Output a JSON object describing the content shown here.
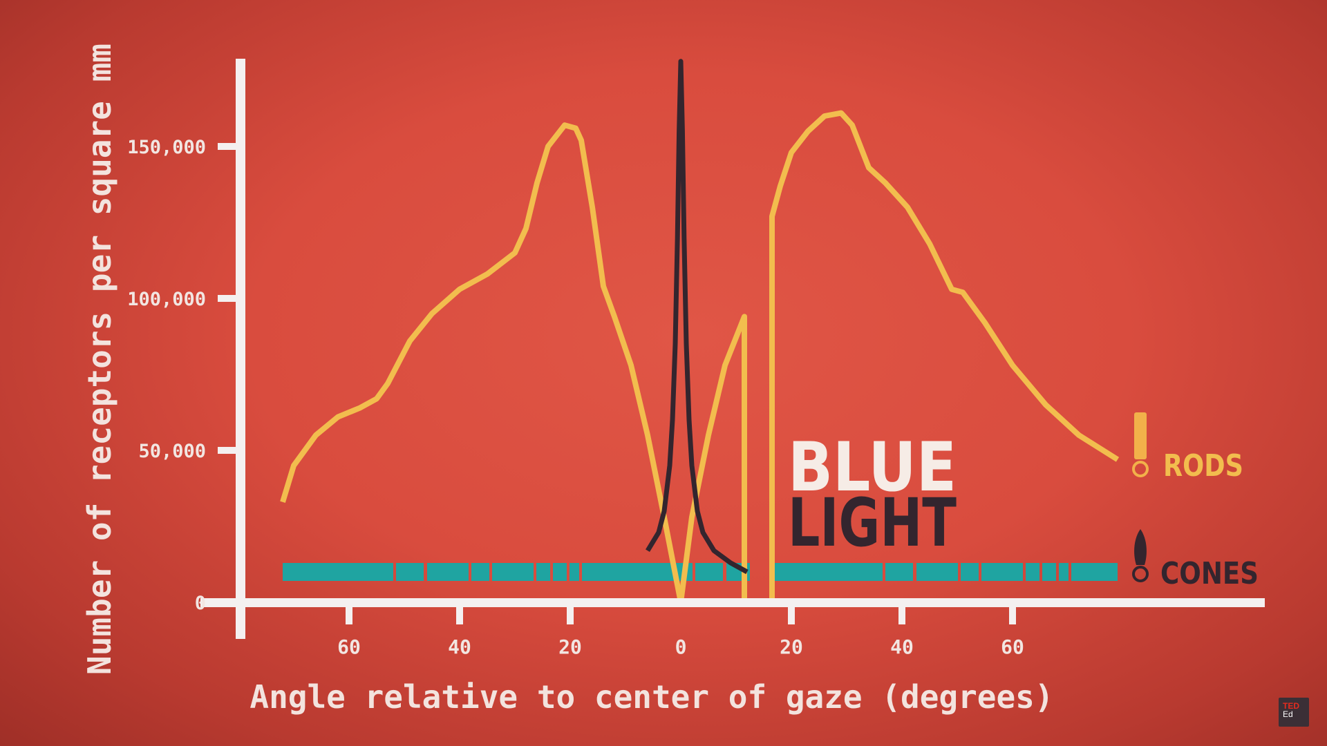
{
  "chart_data": {
    "type": "line",
    "xlabel": "Angle relative to center of gaze (degrees)",
    "ylabel": "Number of receptors per square mm",
    "xlim": [
      -80,
      80
    ],
    "ylim": [
      0,
      180000
    ],
    "x_ticks": [
      -60,
      -40,
      -20,
      0,
      20,
      40,
      60
    ],
    "x_tick_labels": [
      "60",
      "40",
      "20",
      "0",
      "20",
      "40",
      "60"
    ],
    "y_ticks": [
      0,
      50000,
      100000,
      150000
    ],
    "y_tick_labels": [
      "0",
      "50,000",
      "100,000",
      "150,000"
    ],
    "grid": false,
    "legend_position": "right",
    "series": [
      {
        "name": "RODS",
        "color": "#f2bd4e",
        "segments": [
          {
            "x": [
              -72,
              -70,
              -66,
              -62,
              -58,
              -55,
              -53,
              -49,
              -45,
              -40,
              -35,
              -30,
              -28,
              -26,
              -24,
              -21,
              -19,
              -18,
              -16,
              -14,
              -12,
              -9,
              -6,
              -3,
              0
            ],
            "y": [
              33000,
              45000,
              55000,
              61000,
              64000,
              67000,
              72000,
              86000,
              95000,
              103000,
              108000,
              115000,
              123000,
              138000,
              150000,
              157000,
              156000,
              152000,
              130000,
              104000,
              94000,
              78000,
              55000,
              28000,
              0
            ]
          },
          {
            "x": [
              0,
              2,
              5,
              8,
              11.5,
              11.5
            ],
            "y": [
              0,
              28000,
              55000,
              78000,
              94000,
              0
            ]
          },
          {
            "x": [
              16.5,
              16.5,
              18,
              20,
              23,
              26,
              29,
              31,
              34,
              37,
              41,
              45,
              49,
              51,
              55,
              60,
              66,
              72,
              79
            ],
            "y": [
              0,
              127000,
              137000,
              148000,
              155000,
              160000,
              161000,
              157000,
              143000,
              138000,
              130000,
              118000,
              103000,
              102000,
              92000,
              78000,
              65000,
              55000,
              47000
            ]
          }
        ]
      },
      {
        "name": "CONES",
        "color": "#33252e",
        "x": [
          -6,
          -4,
          -3,
          -2,
          -1.5,
          -1,
          -0.6,
          -0.3,
          0,
          0.3,
          0.6,
          1,
          1.5,
          2,
          3,
          4,
          6,
          9,
          12
        ],
        "y": [
          17000,
          23000,
          30000,
          45000,
          60000,
          85000,
          120000,
          155000,
          178000,
          155000,
          120000,
          85000,
          60000,
          45000,
          30000,
          23000,
          17000,
          13000,
          10000
        ]
      }
    ],
    "blue_light_band": {
      "color": "#1fa4a1",
      "x_range": [
        -72,
        79
      ],
      "level": 10000,
      "gap": [
        12.5,
        16.5
      ]
    },
    "annotation": {
      "word1": "BLUE",
      "word2": "LIGHT",
      "word1_color": "#f6ece6",
      "word2_color": "#33252e"
    },
    "legend": [
      {
        "label": "RODS",
        "color": "#f2bd4e"
      },
      {
        "label": "CONES",
        "color": "#33252e"
      }
    ]
  },
  "colors": {
    "axis": "#f4f0f0",
    "tick_text": "#f2e6e2"
  },
  "badge": {
    "ted": "TED",
    "ed": "Ed"
  }
}
